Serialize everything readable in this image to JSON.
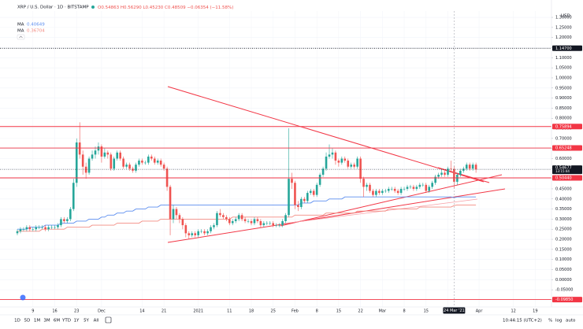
{
  "chart_data": {
    "type": "candlestick",
    "title": "XRP / U.S. Dollar · 1D · BITSTAMP",
    "currency": "USD",
    "ohlc_legend": {
      "open": "O0.54863",
      "high": "H0.56290",
      "low": "L0.45230",
      "close": "C0.48509",
      "change": "−0.06354 (−11.58%)"
    },
    "up_color": "#26a69a",
    "down_color": "#ef5350",
    "categories": [
      null,
      null,
      null,
      null,
      null,
      "9",
      null,
      null,
      null,
      null,
      null,
      null,
      "16",
      null,
      null,
      null,
      null,
      null,
      null,
      "23",
      null,
      null,
      null,
      null,
      null,
      null,
      null,
      "Dec",
      null,
      null,
      null,
      null,
      null,
      null,
      null,
      null,
      null,
      null,
      null,
      null,
      "14",
      null,
      null,
      null,
      null,
      null,
      null,
      "21",
      null,
      null,
      null,
      null,
      null,
      null,
      null,
      null,
      null,
      null,
      "2021",
      null,
      null,
      null,
      null,
      null,
      null,
      null,
      null,
      null,
      "11",
      null,
      null,
      null,
      null,
      null,
      null,
      "18",
      null,
      null,
      null,
      null,
      null,
      null,
      "25",
      null,
      null,
      null,
      null,
      null,
      null,
      "Feb",
      null,
      null,
      null,
      null,
      null,
      null,
      "8",
      null,
      null,
      null,
      null,
      null,
      null,
      "15",
      null,
      null,
      null,
      null,
      null,
      null,
      "22",
      null,
      null,
      null,
      null,
      null,
      null,
      "Mar",
      null,
      null,
      null,
      null,
      null,
      null,
      "8",
      null,
      null,
      null,
      null,
      null,
      null,
      "15",
      null,
      null,
      null,
      null,
      null,
      null,
      "22",
      null,
      null,
      null,
      null,
      null,
      null,
      null,
      null,
      null,
      "Apr",
      null,
      null,
      null,
      null,
      null,
      null,
      null,
      null,
      null,
      null,
      "12",
      null,
      null,
      null,
      null,
      null,
      null,
      "19",
      null,
      null,
      null,
      null,
      null
    ],
    "open": [
      0.23,
      0.24,
      0.25,
      0.25,
      0.26,
      0.25,
      0.25,
      0.26,
      0.26,
      0.26,
      0.25,
      0.26,
      0.26,
      0.26,
      0.27,
      0.3,
      0.29,
      0.3,
      0.35,
      0.48,
      0.68,
      0.62,
      0.56,
      0.53,
      0.6,
      0.62,
      0.64,
      0.66,
      0.61,
      0.63,
      0.62,
      0.55,
      0.6,
      0.63,
      0.6,
      0.56,
      0.57,
      0.55,
      0.54,
      0.57,
      0.59,
      0.58,
      0.58,
      0.61,
      0.6,
      0.58,
      0.59,
      0.57,
      0.55,
      0.46,
      0.3,
      0.35,
      0.32,
      0.3,
      0.27,
      0.23,
      0.22,
      0.23,
      0.22,
      0.24,
      0.24,
      0.23,
      0.24,
      0.26,
      0.27,
      0.33,
      0.32,
      0.31,
      0.3,
      0.28,
      0.29,
      0.3,
      0.32,
      0.3,
      0.29,
      0.29,
      0.28,
      0.3,
      0.29,
      0.27,
      0.28,
      0.28,
      0.28,
      0.27,
      0.27,
      0.27,
      0.29,
      0.32,
      0.5,
      0.48,
      0.37,
      0.36,
      0.4,
      0.39,
      0.43,
      0.44,
      0.42,
      0.47,
      0.52,
      0.55,
      0.61,
      0.62,
      0.63,
      0.59,
      0.58,
      0.6,
      0.59,
      0.56,
      0.57,
      0.56,
      0.6,
      0.5,
      0.46,
      0.47,
      0.44,
      0.42,
      0.44,
      0.43,
      0.44,
      0.44,
      0.45,
      0.45,
      0.44,
      0.43,
      0.45,
      0.45,
      0.46,
      0.46,
      0.45,
      0.46,
      0.47,
      0.47,
      0.44,
      0.46,
      0.48,
      0.51,
      0.52,
      0.53,
      0.52,
      0.55,
      0.54863,
      0.48509,
      0.52,
      0.54,
      0.55,
      0.57,
      0.55,
      0.57,
      null,
      null,
      null,
      null,
      null,
      null,
      null,
      null,
      null,
      null,
      null,
      null,
      null,
      null,
      null,
      null,
      null,
      null,
      null,
      null,
      null,
      null,
      null,
      null
    ],
    "high": [
      0.25,
      0.26,
      0.26,
      0.27,
      0.27,
      0.26,
      0.27,
      0.27,
      0.27,
      0.27,
      0.27,
      0.27,
      0.27,
      0.28,
      0.31,
      0.31,
      0.31,
      0.36,
      0.5,
      0.7,
      0.78,
      0.64,
      0.58,
      0.61,
      0.64,
      0.66,
      0.68,
      0.67,
      0.65,
      0.64,
      0.63,
      0.61,
      0.64,
      0.64,
      0.61,
      0.58,
      0.58,
      0.56,
      0.58,
      0.6,
      0.6,
      0.59,
      0.62,
      0.62,
      0.61,
      0.6,
      0.6,
      0.58,
      0.56,
      0.47,
      0.37,
      0.36,
      0.33,
      0.31,
      0.28,
      0.24,
      0.24,
      0.24,
      0.25,
      0.25,
      0.25,
      0.25,
      0.27,
      0.28,
      0.34,
      0.35,
      0.33,
      0.32,
      0.31,
      0.3,
      0.31,
      0.33,
      0.33,
      0.31,
      0.3,
      0.3,
      0.31,
      0.31,
      0.3,
      0.29,
      0.29,
      0.29,
      0.29,
      0.28,
      0.28,
      0.3,
      0.33,
      0.75,
      0.53,
      0.49,
      0.39,
      0.41,
      0.41,
      0.44,
      0.45,
      0.45,
      0.48,
      0.53,
      0.56,
      0.63,
      0.67,
      0.65,
      0.64,
      0.6,
      0.61,
      0.61,
      0.6,
      0.58,
      0.58,
      0.61,
      0.61,
      0.51,
      0.48,
      0.48,
      0.45,
      0.45,
      0.45,
      0.45,
      0.45,
      0.46,
      0.46,
      0.46,
      0.45,
      0.46,
      0.46,
      0.47,
      0.47,
      0.47,
      0.47,
      0.48,
      0.48,
      0.48,
      0.47,
      0.49,
      0.52,
      0.53,
      0.55,
      0.54,
      0.56,
      0.59,
      0.5629,
      0.53,
      0.55,
      0.56,
      0.58,
      0.58,
      0.58,
      0.58,
      null,
      null,
      null,
      null,
      null,
      null,
      null,
      null,
      null,
      null,
      null,
      null,
      null,
      null,
      null,
      null,
      null,
      null,
      null,
      null,
      null,
      null,
      null,
      null
    ],
    "low": [
      0.22,
      0.23,
      0.24,
      0.24,
      0.24,
      0.24,
      0.24,
      0.25,
      0.25,
      0.24,
      0.24,
      0.25,
      0.25,
      0.25,
      0.26,
      0.28,
      0.28,
      0.29,
      0.34,
      0.46,
      0.6,
      0.52,
      0.5,
      0.52,
      0.59,
      0.6,
      0.62,
      0.58,
      0.6,
      0.6,
      0.54,
      0.54,
      0.59,
      0.59,
      0.55,
      0.55,
      0.54,
      0.53,
      0.53,
      0.56,
      0.57,
      0.57,
      0.57,
      0.59,
      0.57,
      0.57,
      0.56,
      0.54,
      0.44,
      0.22,
      0.28,
      0.3,
      0.28,
      0.25,
      0.21,
      0.2,
      0.21,
      0.21,
      0.21,
      0.23,
      0.22,
      0.22,
      0.23,
      0.25,
      0.26,
      0.31,
      0.3,
      0.29,
      0.27,
      0.27,
      0.28,
      0.29,
      0.29,
      0.28,
      0.28,
      0.27,
      0.27,
      0.28,
      0.26,
      0.26,
      0.27,
      0.27,
      0.26,
      0.26,
      0.26,
      0.26,
      0.28,
      0.31,
      0.45,
      0.35,
      0.34,
      0.35,
      0.38,
      0.38,
      0.42,
      0.41,
      0.41,
      0.46,
      0.51,
      0.54,
      0.6,
      0.6,
      0.57,
      0.56,
      0.57,
      0.58,
      0.55,
      0.55,
      0.55,
      0.55,
      0.48,
      0.41,
      0.44,
      0.43,
      0.41,
      0.41,
      0.42,
      0.42,
      0.43,
      0.43,
      0.44,
      0.43,
      0.42,
      0.42,
      0.44,
      0.44,
      0.45,
      0.44,
      0.44,
      0.45,
      0.46,
      0.43,
      0.43,
      0.45,
      0.47,
      0.5,
      0.51,
      0.51,
      0.51,
      0.53,
      0.4523,
      0.47,
      0.51,
      0.53,
      0.54,
      0.54,
      0.54,
      0.53,
      null,
      null,
      null,
      null,
      null,
      null,
      null,
      null,
      null,
      null,
      null,
      null,
      null,
      null,
      null,
      null,
      null,
      null,
      null,
      null,
      null,
      null,
      null,
      null
    ],
    "close": [
      0.24,
      0.25,
      0.25,
      0.26,
      0.25,
      0.25,
      0.26,
      0.26,
      0.26,
      0.25,
      0.26,
      0.26,
      0.26,
      0.27,
      0.3,
      0.29,
      0.3,
      0.35,
      0.48,
      0.68,
      0.62,
      0.56,
      0.53,
      0.6,
      0.62,
      0.64,
      0.66,
      0.61,
      0.63,
      0.62,
      0.55,
      0.6,
      0.63,
      0.6,
      0.56,
      0.57,
      0.55,
      0.54,
      0.57,
      0.59,
      0.58,
      0.58,
      0.61,
      0.6,
      0.58,
      0.59,
      0.57,
      0.55,
      0.46,
      0.3,
      0.35,
      0.32,
      0.3,
      0.27,
      0.23,
      0.22,
      0.23,
      0.22,
      0.24,
      0.24,
      0.23,
      0.24,
      0.26,
      0.27,
      0.33,
      0.32,
      0.31,
      0.3,
      0.28,
      0.29,
      0.3,
      0.32,
      0.3,
      0.29,
      0.29,
      0.28,
      0.3,
      0.29,
      0.27,
      0.28,
      0.28,
      0.28,
      0.27,
      0.27,
      0.27,
      0.29,
      0.32,
      0.5,
      0.48,
      0.37,
      0.36,
      0.4,
      0.39,
      0.43,
      0.44,
      0.42,
      0.47,
      0.52,
      0.55,
      0.61,
      0.62,
      0.63,
      0.59,
      0.58,
      0.6,
      0.59,
      0.56,
      0.57,
      0.56,
      0.6,
      0.5,
      0.46,
      0.47,
      0.44,
      0.42,
      0.44,
      0.43,
      0.44,
      0.44,
      0.45,
      0.45,
      0.44,
      0.43,
      0.45,
      0.45,
      0.46,
      0.46,
      0.45,
      0.46,
      0.47,
      0.47,
      0.44,
      0.46,
      0.48,
      0.51,
      0.52,
      0.53,
      0.52,
      0.55,
      0.54863,
      0.48509,
      0.52,
      0.54,
      0.55,
      0.57,
      0.55,
      0.57,
      0.54677,
      null,
      null,
      null,
      null,
      null,
      null,
      null,
      null,
      null,
      null,
      null,
      null,
      null,
      null,
      null,
      null,
      null,
      null,
      null,
      null,
      null,
      null,
      null,
      null
    ],
    "indicators": [
      {
        "name": "MA",
        "value_label": "0.40649",
        "color": "#5b8def",
        "values": [
          0.25,
          0.25,
          0.25,
          0.25,
          0.26,
          0.26,
          0.26,
          0.26,
          0.26,
          0.27,
          0.27,
          0.27,
          0.27,
          0.27,
          0.28,
          0.28,
          0.28,
          0.28,
          0.28,
          0.29,
          0.29,
          0.29,
          0.29,
          0.3,
          0.3,
          0.3,
          0.3,
          0.31,
          0.31,
          0.32,
          0.32,
          0.32,
          0.33,
          0.33,
          0.33,
          0.34,
          0.34,
          0.34,
          0.35,
          0.35,
          0.35,
          0.35,
          0.36,
          0.36,
          0.36,
          0.36,
          0.37,
          0.37,
          0.37,
          0.37,
          0.37,
          0.37,
          0.37,
          0.37,
          0.37,
          0.37,
          0.37,
          0.37,
          0.37,
          0.37,
          0.37,
          0.37,
          0.37,
          0.37,
          0.37,
          0.37,
          0.37,
          0.37,
          0.37,
          0.37,
          0.37,
          0.37,
          0.37,
          0.37,
          0.37,
          0.37,
          0.37,
          0.37,
          0.37,
          0.37,
          0.37,
          0.37,
          0.37,
          0.37,
          0.37,
          0.37,
          0.37,
          0.37,
          0.37,
          0.37,
          0.37,
          0.38,
          0.38,
          0.38,
          0.38,
          0.39,
          0.39,
          0.39,
          0.39,
          0.39,
          0.4,
          0.4,
          0.4,
          0.4,
          0.4,
          0.41,
          0.41,
          0.41,
          0.41,
          0.41,
          0.41,
          0.41,
          0.41,
          0.41,
          0.41,
          0.41,
          0.41,
          0.41,
          0.41,
          0.41,
          0.41,
          0.41,
          0.41,
          0.41,
          0.41,
          0.41,
          0.41,
          0.41,
          0.41,
          0.41,
          0.41,
          0.41,
          0.41,
          0.41,
          0.41,
          0.41,
          0.41,
          0.41,
          0.41,
          0.41,
          0.40649,
          0.41,
          0.41,
          0.41,
          0.41,
          0.41,
          0.41,
          0.41,
          null,
          null,
          null,
          null,
          null,
          null,
          null,
          null,
          null,
          null,
          null,
          null,
          null,
          null,
          null,
          null,
          null,
          null,
          null,
          null,
          null,
          null,
          null,
          null
        ]
      },
      {
        "name": "MA",
        "value_label": "0.36704",
        "color": "#f28b82",
        "values": [
          0.24,
          0.24,
          0.24,
          0.24,
          0.24,
          0.24,
          0.24,
          0.24,
          0.25,
          0.25,
          0.25,
          0.25,
          0.25,
          0.25,
          0.25,
          0.25,
          0.26,
          0.26,
          0.26,
          0.26,
          0.26,
          0.26,
          0.26,
          0.26,
          0.27,
          0.27,
          0.27,
          0.27,
          0.27,
          0.27,
          0.27,
          0.27,
          0.28,
          0.28,
          0.28,
          0.28,
          0.28,
          0.28,
          0.28,
          0.28,
          0.29,
          0.29,
          0.29,
          0.29,
          0.29,
          0.29,
          0.3,
          0.3,
          0.3,
          0.3,
          0.3,
          0.3,
          0.3,
          0.3,
          0.3,
          0.3,
          0.3,
          0.3,
          0.3,
          0.3,
          0.3,
          0.3,
          0.3,
          0.3,
          0.3,
          0.3,
          0.3,
          0.3,
          0.3,
          0.31,
          0.31,
          0.31,
          0.31,
          0.31,
          0.31,
          0.31,
          0.31,
          0.31,
          0.31,
          0.31,
          0.31,
          0.31,
          0.31,
          0.31,
          0.31,
          0.31,
          0.31,
          0.31,
          0.31,
          0.32,
          0.32,
          0.32,
          0.32,
          0.32,
          0.32,
          0.32,
          0.32,
          0.32,
          0.32,
          0.33,
          0.33,
          0.33,
          0.33,
          0.33,
          0.33,
          0.33,
          0.33,
          0.33,
          0.33,
          0.34,
          0.34,
          0.34,
          0.34,
          0.34,
          0.34,
          0.34,
          0.34,
          0.34,
          0.34,
          0.35,
          0.35,
          0.35,
          0.35,
          0.35,
          0.35,
          0.35,
          0.35,
          0.35,
          0.35,
          0.36,
          0.36,
          0.36,
          0.36,
          0.36,
          0.36,
          0.36,
          0.36,
          0.36,
          0.36,
          0.36,
          0.36704,
          0.37,
          0.37,
          0.37,
          0.37,
          0.37,
          0.37,
          0.37,
          null,
          null,
          null,
          null,
          null,
          null,
          null,
          null,
          null,
          null,
          null,
          null,
          null,
          null,
          null,
          null,
          null,
          null,
          null,
          null,
          null,
          null,
          null,
          null
        ]
      }
    ],
    "ylim": [
      -0.1353,
      1.3314
    ],
    "yticks": [
      {
        "value": 1.3,
        "label": "1.30000"
      },
      {
        "value": 1.25,
        "label": "1.25000"
      },
      {
        "value": 1.2,
        "label": "1.20000"
      },
      {
        "value": 1.15,
        "label": "1.15000"
      },
      {
        "value": 1.1,
        "label": "1.10000"
      },
      {
        "value": 1.05,
        "label": "1.05000"
      },
      {
        "value": 1.0,
        "label": "1.00000"
      },
      {
        "value": 0.95,
        "label": "0.95000"
      },
      {
        "value": 0.9,
        "label": "0.90000"
      },
      {
        "value": 0.85,
        "label": "0.85000"
      },
      {
        "value": 0.8,
        "label": "0.80000"
      },
      {
        "value": 0.75,
        "label": "0.75000"
      },
      {
        "value": 0.7,
        "label": "0.70000"
      },
      {
        "value": 0.65,
        "label": "0.65000"
      },
      {
        "value": 0.6,
        "label": "0.60000"
      },
      {
        "value": 0.55,
        "label": "0.55000"
      },
      {
        "value": 0.5,
        "label": "0.50000"
      },
      {
        "value": 0.45,
        "label": "0.45000"
      },
      {
        "value": 0.4,
        "label": "0.40000"
      },
      {
        "value": 0.35,
        "label": "0.35000"
      },
      {
        "value": 0.3,
        "label": "0.30000"
      },
      {
        "value": 0.25,
        "label": "0.25000"
      },
      {
        "value": 0.2,
        "label": "0.20000"
      },
      {
        "value": 0.15,
        "label": "0.15000"
      },
      {
        "value": 0.1,
        "label": "0.10000"
      },
      {
        "value": 0.05,
        "label": "0.05000"
      },
      {
        "value": 0,
        "label": "0.00000"
      },
      {
        "value": -0.05,
        "label": "-0.05000"
      },
      {
        "value": -0.1,
        "label": "-0.10000"
      }
    ],
    "grid": true,
    "price_lines": [
      {
        "value": 1.147,
        "label": "1.14700",
        "color": "#131722",
        "style": "dotted"
      },
      {
        "value": 0.75894,
        "label": "0.75894",
        "color": "#f23645",
        "style": "solid"
      },
      {
        "value": 0.65248,
        "label": "0.65248",
        "color": "#f23645",
        "style": "solid"
      },
      {
        "value": 0.5044,
        "label": "0.50440",
        "color": "#f23645",
        "style": "solid"
      },
      {
        "value": -0.0985,
        "label": "-0.09850",
        "color": "#f23645",
        "style": "solid"
      }
    ],
    "last_price": {
      "value": 0.54677,
      "label": "0.54677",
      "countdown": "13:15:44"
    },
    "crosshair_label": "24 Mar '21"
  },
  "toolbar": {
    "ranges": [
      "1D",
      "5D",
      "1M",
      "3M",
      "6M",
      "YTD",
      "1Y",
      "5Y",
      "All"
    ],
    "clock": "10:44:15 (UTC+2)",
    "options": [
      "%",
      "log",
      "auto"
    ]
  }
}
